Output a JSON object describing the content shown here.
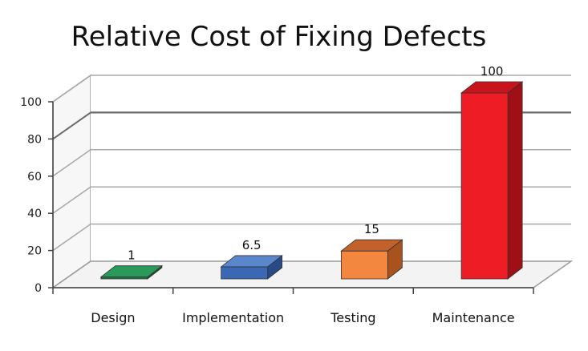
{
  "chart_data": {
    "type": "bar",
    "title": "Relative Cost of Fixing Defects",
    "xlabel": "",
    "ylabel": "",
    "categories": [
      "Design",
      "Implementation",
      "Testing",
      "Maintenance"
    ],
    "values": [
      1,
      6.5,
      15,
      100
    ],
    "data_labels": [
      "1",
      "6.5",
      "15",
      "100"
    ],
    "yticks": [
      "0",
      "20",
      "40",
      "60",
      "80",
      "100"
    ],
    "ylim": [
      0,
      100
    ],
    "grid": true,
    "legend": "none",
    "colors": [
      {
        "front": "#1e7a45",
        "top": "#2a9a5a",
        "side": "#145a30"
      },
      {
        "front": "#3b68b4",
        "top": "#5a86cc",
        "side": "#284a85"
      },
      {
        "front": "#f4873f",
        "top": "#c2622a",
        "side": "#a8521e"
      },
      {
        "front": "#ee1c25",
        "top": "#c8141c",
        "side": "#9e1016"
      }
    ]
  }
}
